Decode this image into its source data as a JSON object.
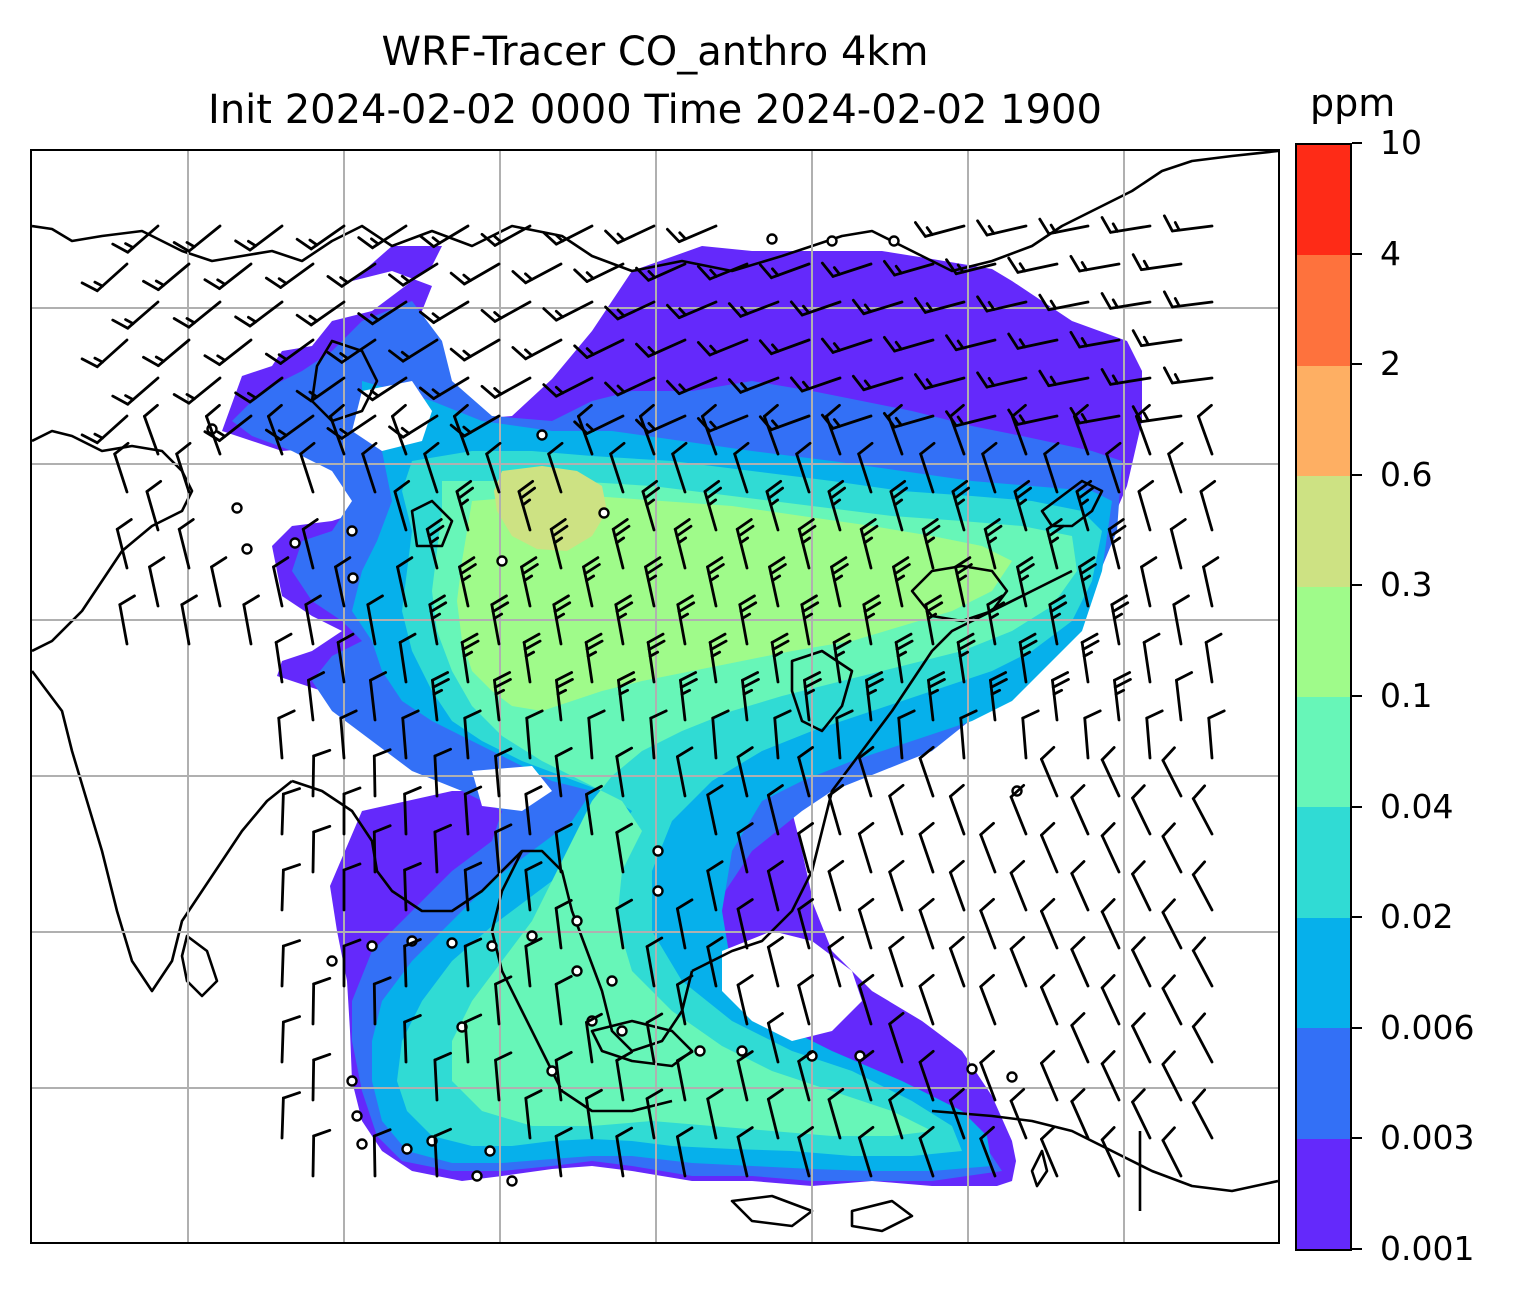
{
  "title": {
    "line1": "WRF-Tracer CO_anthro 4km",
    "line2": "Init 2024-02-02 0000 Time 2024-02-02 1900"
  },
  "colorbar": {
    "units": "ppm",
    "levels": [
      "0.001",
      "0.003",
      "0.006",
      "0.02",
      "0.04",
      "0.1",
      "0.3",
      "0.6",
      "2",
      "4",
      "10"
    ],
    "colors": [
      "#6429fb",
      "#3370f6",
      "#06b0eb",
      "#30dbd4",
      "#67f6b8",
      "#9ffb8a",
      "#cde283",
      "#feaf63",
      "#fe723d",
      "#fe2b17"
    ]
  },
  "map": {
    "field": "CO_anthro",
    "resolution": "4km",
    "gridlines": true,
    "overlay": "wind barbs",
    "land_outline_color": "#000000",
    "gridline_color": "#b0b0b0"
  }
}
